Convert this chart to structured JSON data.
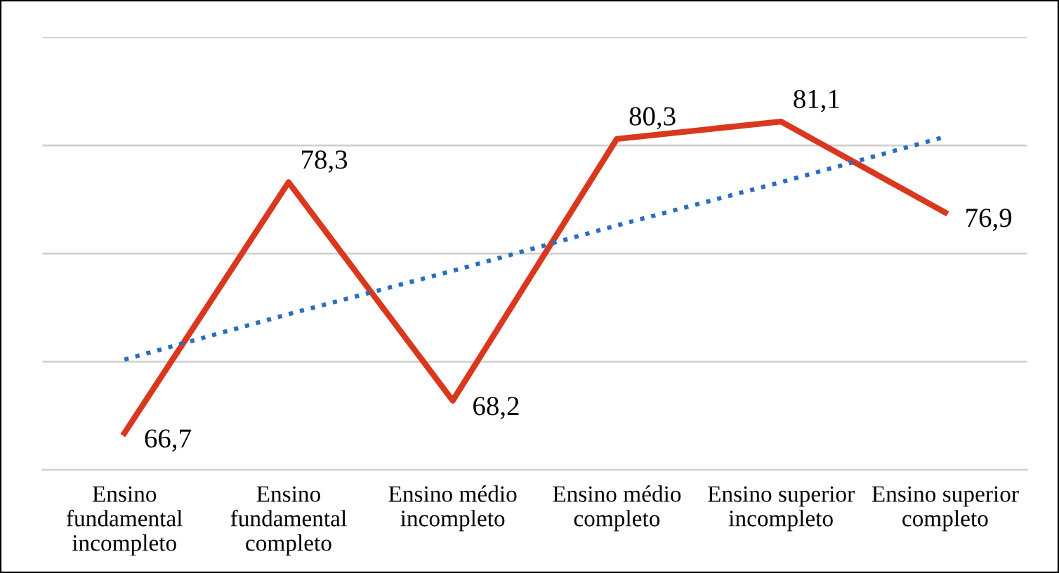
{
  "chart_data": {
    "type": "line",
    "categories": [
      "Ensino\nfundamental\nincompleto",
      "Ensino\nfundamental\ncompleto",
      "Ensino médio\nincompleto",
      "Ensino médio\ncompleto",
      "Ensino superior\nincompleto",
      "Ensino superior\ncompleto"
    ],
    "series": [
      {
        "color": "#d9381e",
        "values": [
          66.7,
          78.3,
          68.2,
          80.3,
          81.1,
          76.9
        ],
        "value_labels": [
          "66,7",
          "78,3",
          "68,2",
          "80,3",
          "81,1",
          "76,9"
        ],
        "line_style": "solid"
      },
      {
        "type": "line",
        "color": "#2a6ebb",
        "values": [
          70.1,
          72.2,
          74.2,
          76.3,
          78.3,
          80.4
        ],
        "line_style": "dotted"
      }
    ],
    "ylim": [
      65,
      85
    ],
    "yticks": [
      {
        "value": 65,
        "label": null
      },
      {
        "value": 70,
        "label": null
      },
      {
        "value": 75,
        "label": null
      },
      {
        "value": 80,
        "label": null
      },
      {
        "value": 85,
        "label": null
      }
    ],
    "tick_labels": "x",
    "grid": "y",
    "legend": false,
    "marker": "none"
  }
}
